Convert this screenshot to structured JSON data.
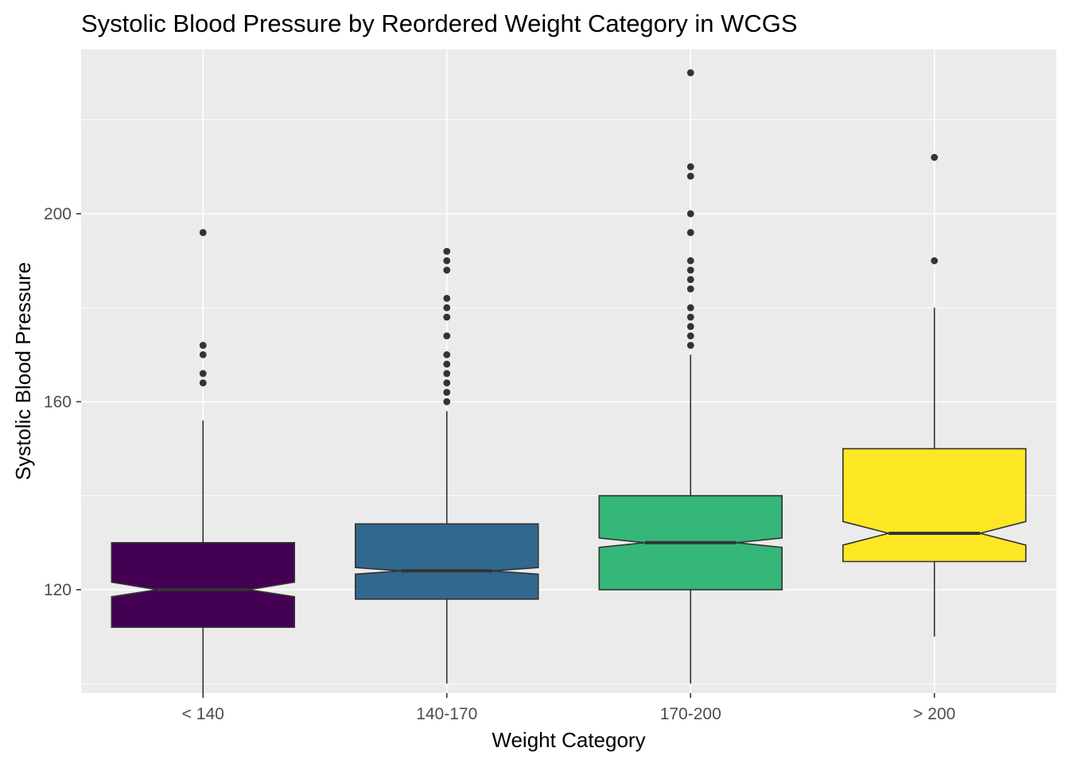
{
  "chart_data": {
    "type": "boxplot",
    "notched": true,
    "title": "Systolic Blood Pressure by Reordered Weight Category in WCGS",
    "xlabel": "Weight Category",
    "ylabel": "Systolic Blood Pressure",
    "ylim": [
      98,
      235
    ],
    "yticks": [
      120,
      160,
      200
    ],
    "grid": true,
    "background": "#ebebeb",
    "gridColor": "#ffffff",
    "boxStroke": "#333333",
    "outlierColor": "#333333",
    "categories": [
      "< 140",
      "140-170",
      "170-200",
      "> 200"
    ],
    "boxes": [
      {
        "category": "< 140",
        "color": "#440154",
        "whisker_low": 98,
        "q1": 112,
        "median": 120,
        "q3": 130,
        "whisker_high": 156,
        "notch_low": 118.5,
        "notch_high": 121.6,
        "outliers": [
          164,
          166,
          170,
          172,
          196
        ]
      },
      {
        "category": "140-170",
        "color": "#31688e",
        "whisker_low": 100,
        "q1": 118,
        "median": 124,
        "q3": 134,
        "whisker_high": 158,
        "notch_low": 123.3,
        "notch_high": 124.7,
        "outliers": [
          160,
          162,
          164,
          166,
          168,
          170,
          174,
          178,
          180,
          182,
          188,
          190,
          192
        ]
      },
      {
        "category": "170-200",
        "color": "#35b779",
        "whisker_low": 100,
        "q1": 120,
        "median": 130,
        "q3": 140,
        "whisker_high": 170,
        "notch_low": 129,
        "notch_high": 131,
        "outliers": [
          172,
          174,
          176,
          178,
          180,
          184,
          186,
          188,
          190,
          196,
          200,
          208,
          210,
          230
        ]
      },
      {
        "category": "> 200",
        "color": "#fde725",
        "whisker_low": 110,
        "q1": 126,
        "median": 132,
        "q3": 150,
        "whisker_high": 180,
        "notch_low": 129.5,
        "notch_high": 134.5,
        "outliers": [
          190,
          212
        ]
      }
    ]
  }
}
